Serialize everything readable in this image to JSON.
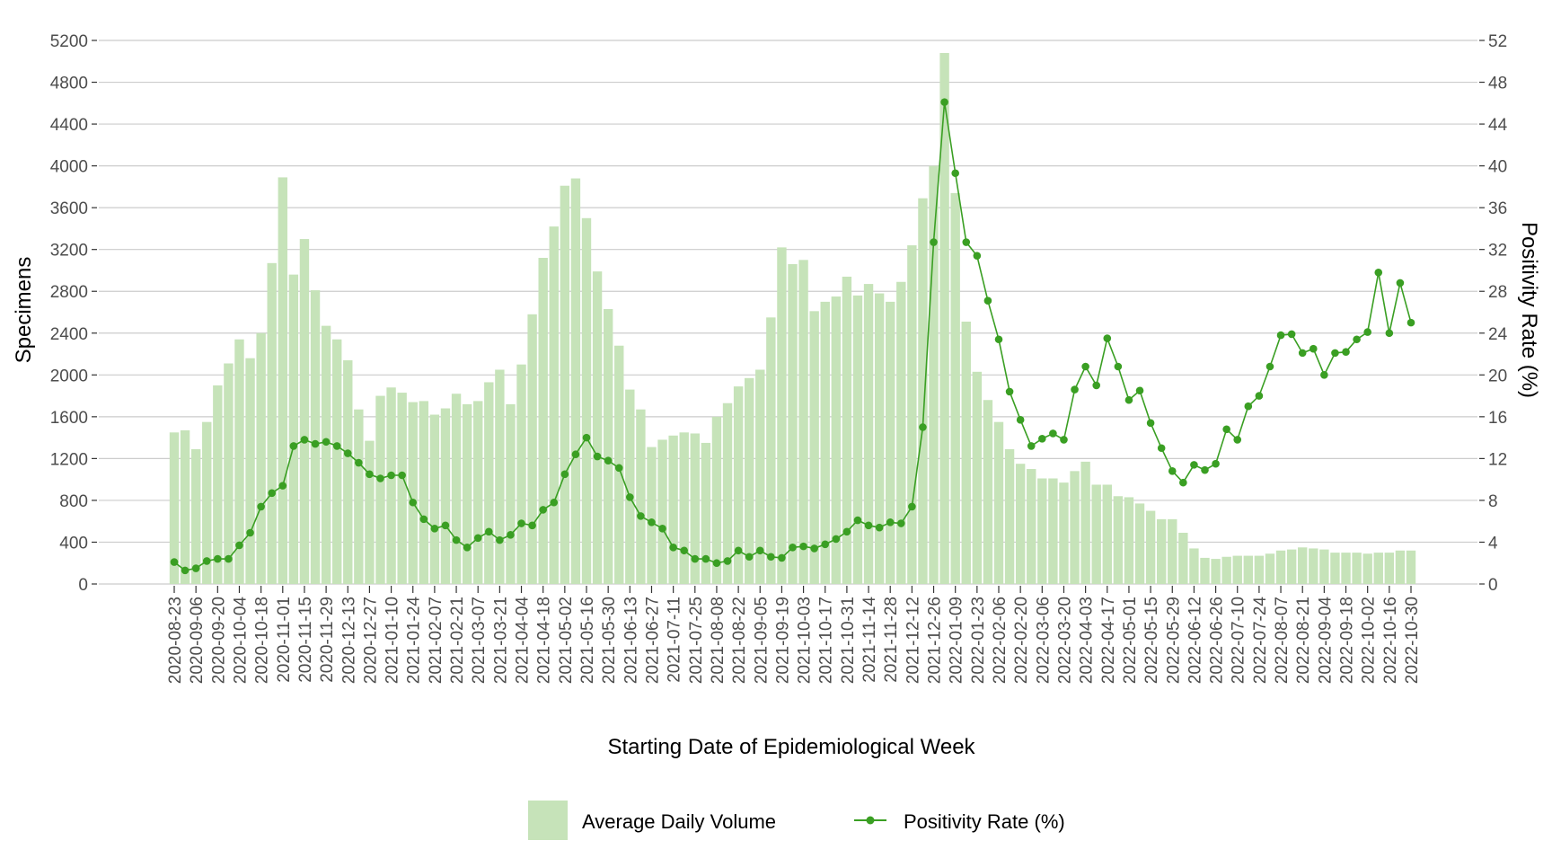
{
  "chart_data": {
    "type": "bar+line",
    "title": "",
    "xlabel": "Starting Date of Epidemiological Week",
    "ylabel": "Specimens",
    "y2label": "Positivity Rate (%)",
    "ylim": [
      0,
      5200
    ],
    "y2lim": [
      0,
      52
    ],
    "yticks": [
      0,
      400,
      800,
      1200,
      1600,
      2000,
      2400,
      2800,
      3200,
      3600,
      4000,
      4400,
      4800,
      5200
    ],
    "y2ticks": [
      0,
      4,
      8,
      12,
      16,
      20,
      24,
      28,
      32,
      36,
      40,
      44,
      48,
      52
    ],
    "grid": true,
    "legend_position": "bottom",
    "colors": {
      "bar": "#c6e3b9",
      "line": "#3a9f23"
    },
    "x": [
      "2020-08-23",
      "2020-08-30",
      "2020-09-06",
      "2020-09-13",
      "2020-09-20",
      "2020-09-27",
      "2020-10-04",
      "2020-10-11",
      "2020-10-18",
      "2020-10-25",
      "2020-11-01",
      "2020-11-08",
      "2020-11-15",
      "2020-11-22",
      "2020-11-29",
      "2020-12-06",
      "2020-12-13",
      "2020-12-20",
      "2020-12-27",
      "2021-01-03",
      "2021-01-10",
      "2021-01-17",
      "2021-01-24",
      "2021-01-31",
      "2021-02-07",
      "2021-02-14",
      "2021-02-21",
      "2021-02-28",
      "2021-03-07",
      "2021-03-14",
      "2021-03-21",
      "2021-03-28",
      "2021-04-04",
      "2021-04-11",
      "2021-04-18",
      "2021-04-25",
      "2021-05-02",
      "2021-05-09",
      "2021-05-16",
      "2021-05-23",
      "2021-05-30",
      "2021-06-06",
      "2021-06-13",
      "2021-06-20",
      "2021-06-27",
      "2021-07-04",
      "2021-07-11",
      "2021-07-18",
      "2021-07-25",
      "2021-08-01",
      "2021-08-08",
      "2021-08-15",
      "2021-08-22",
      "2021-08-29",
      "2021-09-05",
      "2021-09-12",
      "2021-09-19",
      "2021-09-26",
      "2021-10-03",
      "2021-10-10",
      "2021-10-17",
      "2021-10-24",
      "2021-10-31",
      "2021-11-07",
      "2021-11-14",
      "2021-11-21",
      "2021-11-28",
      "2021-12-05",
      "2021-12-12",
      "2021-12-19",
      "2021-12-26",
      "2022-01-02",
      "2022-01-09",
      "2022-01-16",
      "2022-01-23",
      "2022-01-30",
      "2022-02-06",
      "2022-02-13",
      "2022-02-20",
      "2022-02-27",
      "2022-03-06",
      "2022-03-13",
      "2022-03-20",
      "2022-03-27",
      "2022-04-03",
      "2022-04-10",
      "2022-04-17",
      "2022-04-24",
      "2022-05-01",
      "2022-05-08",
      "2022-05-15",
      "2022-05-22",
      "2022-05-29",
      "2022-06-05",
      "2022-06-12",
      "2022-06-19",
      "2022-06-26",
      "2022-07-03",
      "2022-07-10",
      "2022-07-17",
      "2022-07-24",
      "2022-07-31",
      "2022-08-07",
      "2022-08-14",
      "2022-08-21",
      "2022-08-28",
      "2022-09-04",
      "2022-09-11",
      "2022-09-18",
      "2022-09-25",
      "2022-10-02",
      "2022-10-09",
      "2022-10-16",
      "2022-10-23",
      "2022-10-30"
    ],
    "series": [
      {
        "name": "Average Daily Volume",
        "type": "bar",
        "axis": "left",
        "values": [
          1450,
          1470,
          1290,
          1550,
          1900,
          2110,
          2340,
          2160,
          2400,
          3070,
          3890,
          2960,
          3300,
          2810,
          2470,
          2340,
          2140,
          1670,
          1370,
          1800,
          1880,
          1830,
          1740,
          1750,
          1620,
          1680,
          1820,
          1720,
          1750,
          1930,
          2050,
          1720,
          2100,
          2580,
          3120,
          3420,
          3810,
          3880,
          3500,
          2990,
          2630,
          2280,
          1860,
          1670,
          1310,
          1380,
          1420,
          1450,
          1440,
          1350,
          1600,
          1730,
          1890,
          1970,
          2050,
          2550,
          3220,
          3060,
          3100,
          2610,
          2700,
          2750,
          2940,
          2760,
          2870,
          2780,
          2700,
          2890,
          3240,
          3690,
          4000,
          5080,
          3740,
          2510,
          2030,
          1760,
          1550,
          1290,
          1150,
          1100,
          1010,
          1010,
          970,
          1080,
          1170,
          950,
          950,
          840,
          830,
          770,
          700,
          620,
          620,
          490,
          340,
          250,
          240,
          260,
          270,
          270,
          270,
          290,
          320,
          330,
          350,
          340,
          330,
          300,
          300,
          300,
          290,
          300,
          300,
          320,
          320
        ]
      },
      {
        "name": "Positivity Rate (%)",
        "type": "line",
        "axis": "right",
        "values": [
          2.1,
          1.3,
          1.5,
          2.2,
          2.4,
          2.4,
          3.7,
          4.9,
          7.4,
          8.7,
          9.4,
          13.2,
          13.8,
          13.4,
          13.6,
          13.2,
          12.5,
          11.6,
          10.5,
          10.1,
          10.4,
          10.4,
          7.8,
          6.2,
          5.3,
          5.6,
          4.2,
          3.5,
          4.4,
          5.0,
          4.2,
          4.7,
          5.8,
          5.6,
          7.1,
          7.8,
          10.5,
          12.4,
          14.0,
          12.2,
          11.8,
          11.1,
          8.3,
          6.5,
          5.9,
          5.3,
          3.5,
          3.2,
          2.4,
          2.4,
          2.0,
          2.2,
          3.2,
          2.6,
          3.2,
          2.6,
          2.5,
          3.5,
          3.6,
          3.4,
          3.8,
          4.3,
          5.0,
          6.1,
          5.6,
          5.4,
          5.9,
          5.8,
          7.4,
          15.0,
          32.7,
          46.1,
          39.3,
          32.7,
          31.4,
          27.1,
          23.4,
          18.4,
          15.7,
          13.2,
          13.9,
          14.4,
          13.8,
          18.6,
          20.8,
          19.0,
          23.5,
          20.8,
          17.6,
          18.5,
          15.4,
          13.0,
          10.8,
          9.7,
          11.4,
          10.9,
          11.5,
          14.8,
          13.8,
          17.0,
          18.0,
          20.8,
          23.8,
          23.9,
          22.1,
          22.5,
          20.0,
          22.1,
          22.2,
          23.4,
          24.1,
          29.8,
          24.0,
          28.8,
          25.0
        ]
      }
    ]
  }
}
